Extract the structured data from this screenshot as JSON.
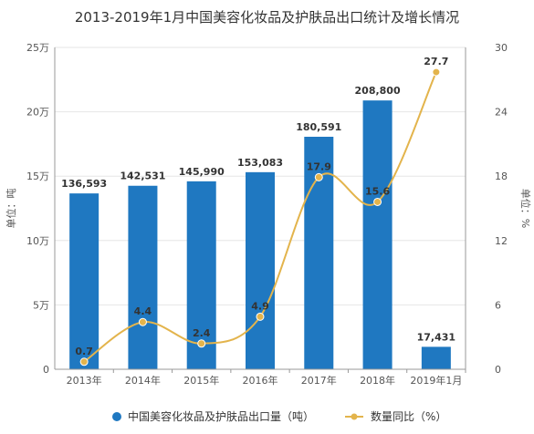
{
  "chart_data": {
    "type": "bar",
    "title": "2013-2019年1月中国美容化妆品及护肤品出口统计及增长情况",
    "categories": [
      "2013年",
      "2014年",
      "2015年",
      "2016年",
      "2017年",
      "2018年",
      "2019年1月"
    ],
    "series": [
      {
        "name": "中国美容化妆品及护肤品出口量（吨）",
        "type": "bar",
        "axis": "left",
        "values": [
          136593,
          142531,
          145990,
          153083,
          180591,
          208800,
          17431
        ],
        "labels": [
          "136,593",
          "142,531",
          "145,990",
          "153,083",
          "180,591",
          "208,800",
          "17,431"
        ]
      },
      {
        "name": "数量同比（%）",
        "type": "line",
        "axis": "right",
        "values": [
          0.7,
          4.4,
          2.4,
          4.9,
          17.9,
          15.6,
          27.7
        ],
        "labels": [
          "0.7",
          "4.4",
          "2.4",
          "4.9",
          "17.9",
          "15.6",
          "27.7"
        ]
      }
    ],
    "ylabel": "单位：吨",
    "y2label": "单位：%",
    "ylim": [
      0,
      250000
    ],
    "y2lim": [
      0,
      30
    ],
    "yticks": [
      0,
      50000,
      100000,
      150000,
      200000,
      250000
    ],
    "ytick_labels": [
      "0",
      "5万",
      "10万",
      "15万",
      "20万",
      "25万"
    ],
    "y2ticks": [
      0,
      6,
      12,
      18,
      24,
      30
    ],
    "y2tick_labels": [
      "0",
      "6",
      "12",
      "18",
      "24",
      "30"
    ],
    "grid": true,
    "legend_position": "bottom",
    "colors": {
      "bar": "#1f78c1",
      "line": "#e3b44c",
      "grid": "#e6e6e6",
      "axis": "#999999"
    }
  }
}
